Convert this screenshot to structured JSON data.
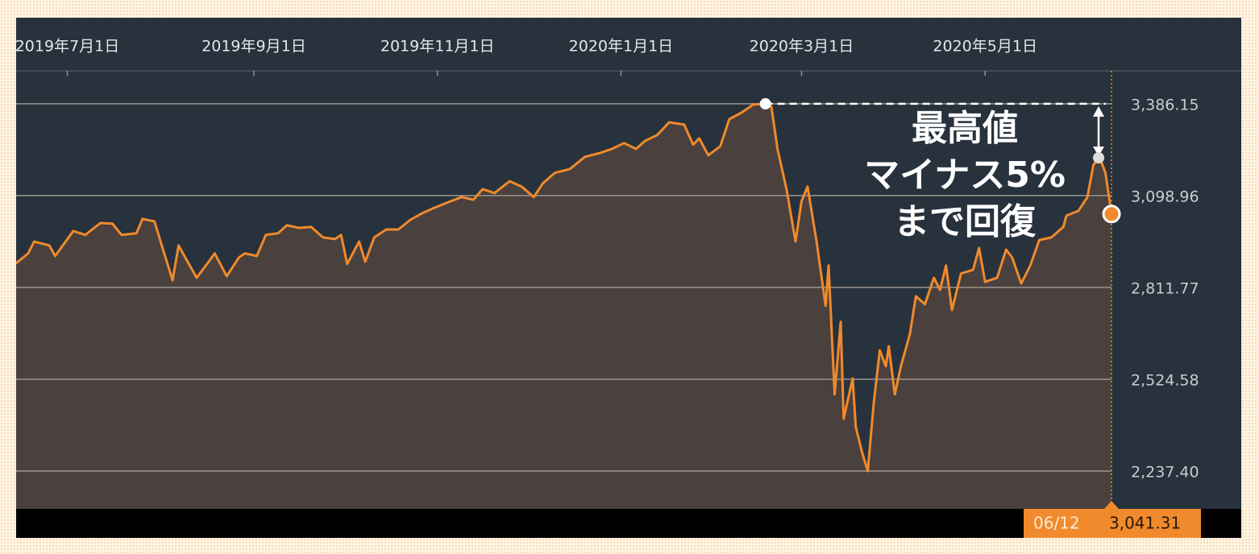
{
  "chart_data": {
    "type": "line",
    "color": "#f08a2c",
    "area_color": "#4a403d",
    "x": [
      "2019-06-14",
      "2019-06-18",
      "2019-06-20",
      "2019-06-25",
      "2019-06-27",
      "2019-07-03",
      "2019-07-07",
      "2019-07-12",
      "2019-07-16",
      "2019-07-19",
      "2019-07-24",
      "2019-07-26",
      "2019-07-30",
      "2019-08-01",
      "2019-08-05",
      "2019-08-07",
      "2019-08-10",
      "2019-08-13",
      "2019-08-17",
      "2019-08-19",
      "2019-08-23",
      "2019-08-27",
      "2019-08-29",
      "2019-09-02",
      "2019-09-05",
      "2019-09-09",
      "2019-09-12",
      "2019-09-16",
      "2019-09-20",
      "2019-09-24",
      "2019-09-28",
      "2019-09-30",
      "2019-10-02",
      "2019-10-06",
      "2019-10-08",
      "2019-10-11",
      "2019-10-15",
      "2019-10-19",
      "2019-10-23",
      "2019-10-27",
      "2019-10-31",
      "2019-11-04",
      "2019-11-09",
      "2019-11-13",
      "2019-11-16",
      "2019-11-20",
      "2019-11-25",
      "2019-11-29",
      "2019-12-03",
      "2019-12-06",
      "2019-12-10",
      "2019-12-15",
      "2019-12-20",
      "2019-12-25",
      "2019-12-29",
      "2020-01-02",
      "2020-01-06",
      "2020-01-09",
      "2020-01-13",
      "2020-01-17",
      "2020-01-22",
      "2020-01-25",
      "2020-01-27",
      "2020-01-30",
      "2020-02-03",
      "2020-02-06",
      "2020-02-10",
      "2020-02-14",
      "2020-02-18",
      "2020-02-20",
      "2020-02-22",
      "2020-02-25",
      "2020-02-28",
      "2020-03-01",
      "2020-03-03",
      "2020-03-06",
      "2020-03-09",
      "2020-03-10",
      "2020-03-12",
      "2020-03-14",
      "2020-03-15",
      "2020-03-18",
      "2020-03-19",
      "2020-03-21",
      "2020-03-23",
      "2020-03-25",
      "2020-03-27",
      "2020-03-29",
      "2020-03-30",
      "2020-04-01",
      "2020-04-03",
      "2020-04-06",
      "2020-04-08",
      "2020-04-11",
      "2020-04-14",
      "2020-04-16",
      "2020-04-18",
      "2020-04-20",
      "2020-04-23",
      "2020-04-27",
      "2020-04-29",
      "2020-05-01",
      "2020-05-05",
      "2020-05-08",
      "2020-05-10",
      "2020-05-13",
      "2020-05-16",
      "2020-05-19",
      "2020-05-23",
      "2020-05-27",
      "2020-05-28",
      "2020-06-01",
      "2020-06-04",
      "2020-06-06",
      "2020-06-08",
      "2020-06-10",
      "2020-06-12"
    ],
    "values": [
      2887,
      2918,
      2955,
      2943,
      2910,
      2988,
      2976,
      3013,
      3011,
      2976,
      2981,
      3026,
      3018,
      2955,
      2834,
      2943,
      2892,
      2842,
      2892,
      2918,
      2847,
      2905,
      2918,
      2910,
      2976,
      2981,
      3006,
      2998,
      3001,
      2968,
      2963,
      2976,
      2885,
      2955,
      2892,
      2968,
      2993,
      2993,
      3023,
      3044,
      3061,
      3076,
      3094,
      3086,
      3119,
      3107,
      3144,
      3127,
      3094,
      3137,
      3170,
      3182,
      3220,
      3232,
      3245,
      3263,
      3245,
      3270,
      3288,
      3328,
      3321,
      3258,
      3278,
      3225,
      3253,
      3338,
      3358,
      3384,
      3386,
      3376,
      3245,
      3119,
      2955,
      3081,
      3127,
      2955,
      2754,
      2880,
      2477,
      2704,
      2401,
      2527,
      2376,
      2300,
      2237,
      2452,
      2615,
      2565,
      2628,
      2477,
      2565,
      2666,
      2784,
      2759,
      2842,
      2804,
      2880,
      2741,
      2855,
      2867,
      2935,
      2829,
      2842,
      2930,
      2905,
      2824,
      2880,
      2960,
      2968,
      3001,
      3036,
      3051,
      3094,
      3195,
      3220,
      3170,
      3041.31
    ],
    "xlim": [
      "2019-06-14",
      "2020-06-12"
    ],
    "xticks": [
      {
        "value": "2019-07-01",
        "label": "2019年7月1日"
      },
      {
        "value": "2019-09-01",
        "label": "2019年9月1日"
      },
      {
        "value": "2019-11-01",
        "label": "2019年11月1日"
      },
      {
        "value": "2020-01-01",
        "label": "2020年1月1日"
      },
      {
        "value": "2020-03-01",
        "label": "2020年3月1日"
      },
      {
        "value": "2020-05-01",
        "label": "2020年5月1日"
      }
    ],
    "ylim": [
      2119,
      3489
    ],
    "yticks": [
      {
        "value": 2237.4,
        "label": "2,237.40"
      },
      {
        "value": 2524.58,
        "label": "2,524.58"
      },
      {
        "value": 2811.77,
        "label": "2,811.77"
      },
      {
        "value": 3098.96,
        "label": "3,098.96"
      },
      {
        "value": 3386.15,
        "label": "3,386.15"
      }
    ],
    "grid": true,
    "peak": {
      "x": "2020-02-18",
      "value": 3386
    },
    "target_value": 3217,
    "annotation": [
      "最高値",
      "マイナス5%",
      "まで回復"
    ],
    "last_label": {
      "date": "06/12",
      "value": "3,041.31"
    }
  }
}
